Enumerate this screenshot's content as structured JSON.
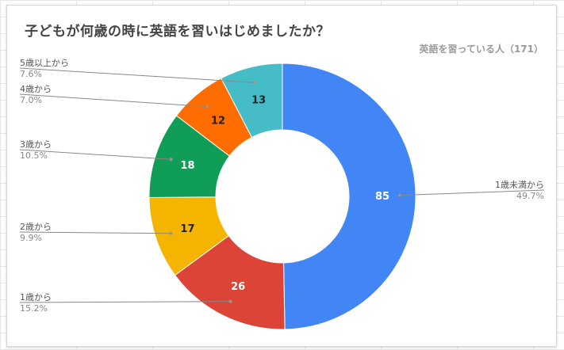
{
  "chart_data": {
    "type": "pie",
    "donut": true,
    "title": "子どもが何歳の時に英語を習いはじめましたか？",
    "subtitle": "英語を習っている人（171）",
    "slices": [
      {
        "label": "1歳未満から",
        "value": 85,
        "percent": "49.7%",
        "color": "#4285f4",
        "value_color": "#ffffff"
      },
      {
        "label": "1歳から",
        "value": 26,
        "percent": "15.2%",
        "color": "#db4437",
        "value_color": "#ffffff"
      },
      {
        "label": "2歳から",
        "value": 17,
        "percent": "9.9%",
        "color": "#f4b400",
        "value_color": "#222222"
      },
      {
        "label": "3歳から",
        "value": 18,
        "percent": "10.5%",
        "color": "#0f9d58",
        "value_color": "#ffffff"
      },
      {
        "label": "4歳から",
        "value": 12,
        "percent": "7.0%",
        "color": "#ff6d01",
        "value_color": "#222222"
      },
      {
        "label": "5歳以上から",
        "value": 13,
        "percent": "7.6%",
        "color": "#46bdc6",
        "value_color": "#222222"
      }
    ]
  }
}
